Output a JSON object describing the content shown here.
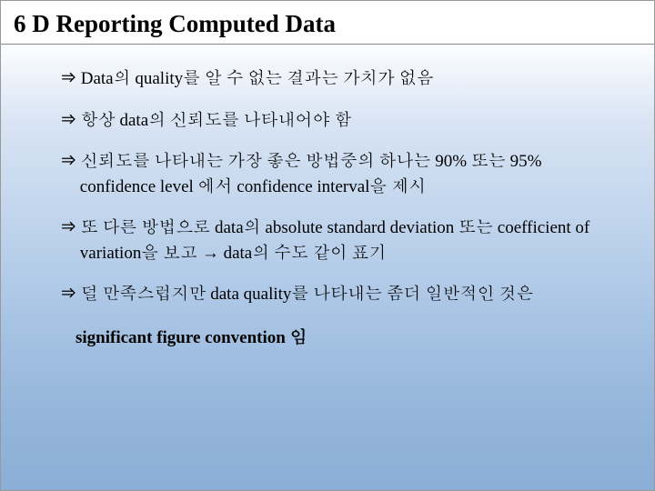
{
  "title": "6 D   Reporting Computed Data",
  "arrow": "⇒",
  "bullets": [
    "Data의 quality를 알 수 없는 결과는 가치가 없음",
    "항상 data의 신뢰도를 나타내어야 함",
    "신뢰도를 나타내는 가장 좋은 방법중의 하나는 90% 또는 95% confidence level  에서 confidence interval을 제시",
    "또 다른 방법으로 data의 absolute standard deviation 또는 coefficient of   variation을 보고 → data의 수도 같이 표기",
    "덜 만족스럽지만 data quality를 나타내는 좀더 일반적인 것은"
  ],
  "sigline": "significant figure convention 임",
  "colors": {
    "text": "#000000",
    "border": "#888888",
    "gradient_top": "#ffffff",
    "gradient_bottom": "#8aaed6"
  },
  "fontsize_title": 27,
  "fontsize_body": 19
}
